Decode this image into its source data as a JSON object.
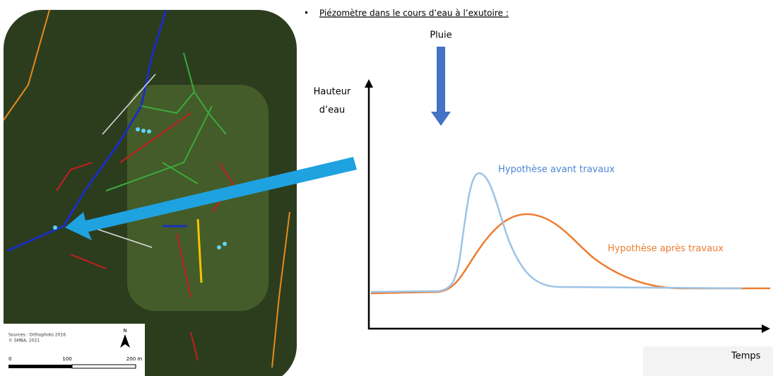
{
  "bullet": "Piézomètre dans le cours d’eau à l’exutoire :",
  "rain_label": "Pluie",
  "y_axis_label": [
    "Hauteur",
    "d’eau"
  ],
  "x_axis_label": "Temps",
  "curves": [
    {
      "label": "Hypothèse avant travaux"
    },
    {
      "label": "Hypothèse après travaux"
    }
  ],
  "map": {
    "sources": [
      "Sources : Orthophoto 2016",
      "© SMBA, 2021"
    ],
    "north": "N",
    "scale": [
      "0",
      "100",
      "200 m"
    ]
  }
}
